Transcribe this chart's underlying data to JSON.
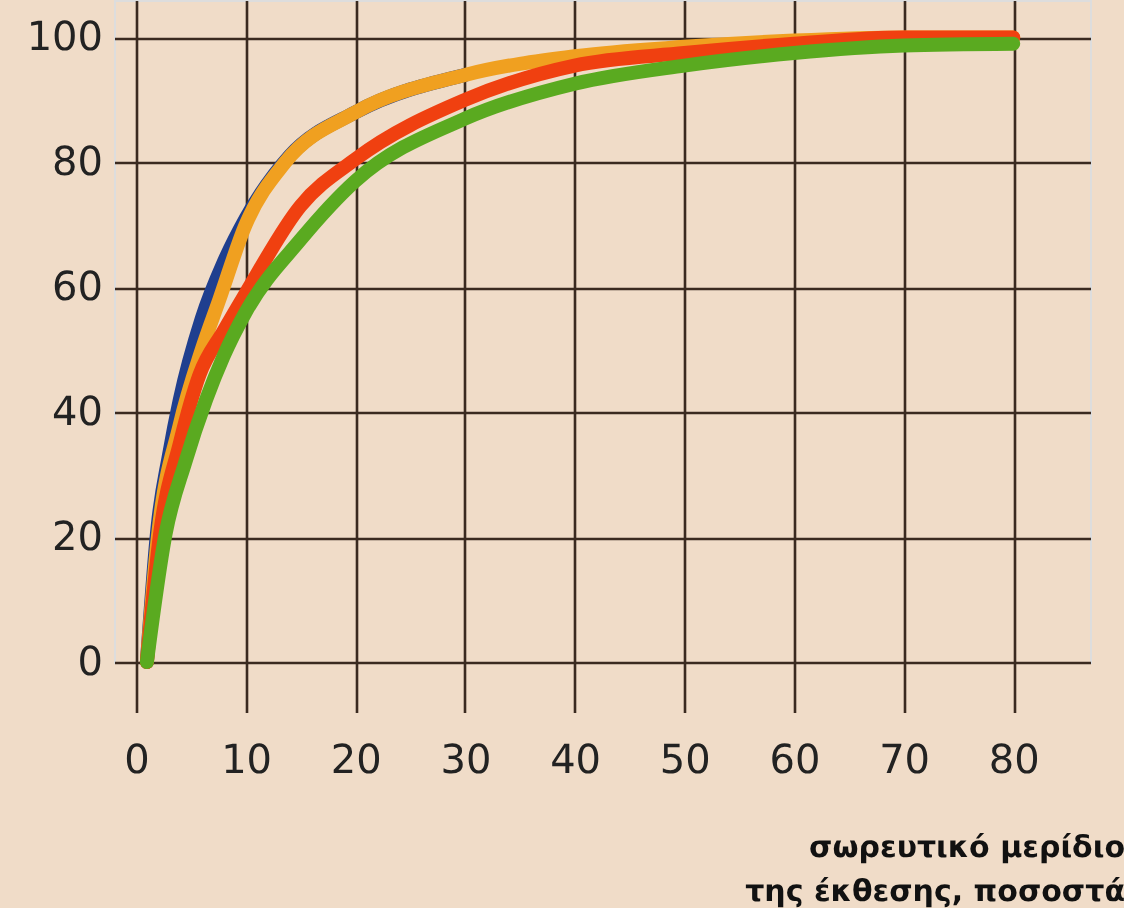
{
  "chart_data": {
    "type": "line",
    "xlabel": "σωρευτικό μερίδιο\nτης έκθεσης, ποσοστά",
    "xlim": [
      -2,
      87
    ],
    "ylim": [
      0,
      106
    ],
    "xticks": [
      0,
      10,
      20,
      30,
      40,
      50,
      60,
      70,
      80
    ],
    "yticks": [
      0,
      20,
      40,
      60,
      80,
      100
    ],
    "grid": true,
    "marker": "none",
    "line_style": "solid",
    "series": [
      {
        "color": "#1f3f8f",
        "x": [
          1,
          2,
          3,
          4,
          6,
          8,
          10,
          14,
          20,
          30
        ],
        "values": [
          0,
          22,
          33,
          42,
          55,
          64,
          71,
          81,
          88,
          94
        ]
      },
      {
        "color": "#f0a020",
        "x": [
          1,
          2,
          4,
          6,
          7.6,
          10,
          13.6,
          20,
          30,
          40,
          50,
          60,
          70,
          80
        ],
        "values": [
          0,
          20,
          38,
          50,
          58,
          70,
          80,
          88,
          94,
          97,
          98.5,
          99.5,
          100,
          100
        ]
      },
      {
        "color": "#f04010",
        "x": [
          1,
          2.2,
          4,
          5.8,
          8,
          10,
          15,
          20,
          30,
          40,
          50,
          60,
          70,
          80
        ],
        "values": [
          0,
          20.5,
          35,
          46,
          53,
          59,
          73,
          80.5,
          90,
          95.5,
          97.5,
          99,
          100,
          100
        ]
      },
      {
        "color": "#5aaa20",
        "x": [
          1,
          2.7,
          4.5,
          6.4,
          8,
          10,
          15,
          20,
          30,
          40,
          50,
          60,
          70,
          80
        ],
        "values": [
          0,
          20.5,
          32,
          42,
          49,
          56,
          67.6,
          77,
          87,
          92.6,
          95.5,
          97.5,
          98.7,
          99
        ]
      }
    ]
  }
}
